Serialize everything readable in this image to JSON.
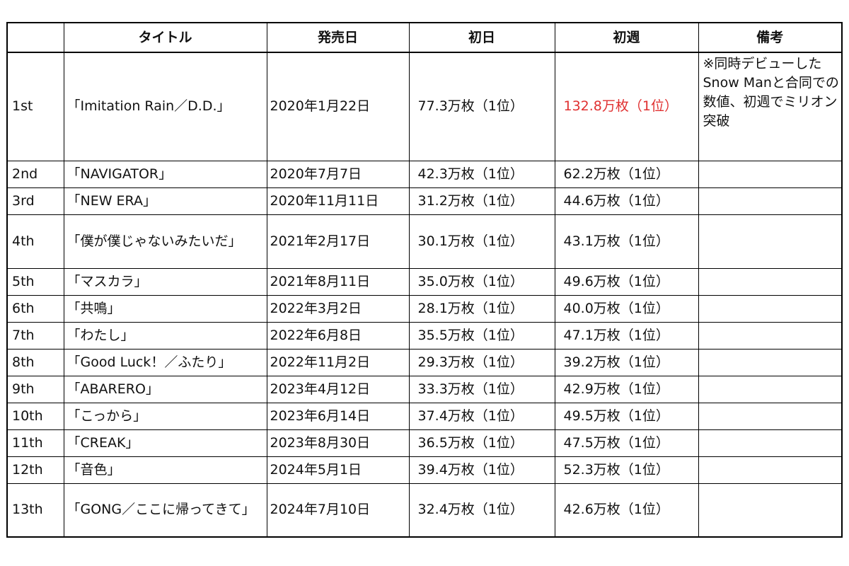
{
  "table": {
    "headers": [
      "",
      "タイトル",
      "発売日",
      "初日",
      "初週",
      "備考"
    ],
    "rows": [
      {
        "rank": "1st",
        "title": "「Imitation Rain／D.D.」",
        "date": "2020年1月22日",
        "first_day": "77.3万枚（1位）",
        "first_week": "132.8万枚（1位）",
        "note": "※同時デビューしたSnow Manと合同での数値、初週でミリオン突破",
        "highlight_week": true
      },
      {
        "rank": "2nd",
        "title": "「NAVIGATOR」",
        "date": "2020年7月7日",
        "first_day": "42.3万枚（1位）",
        "first_week": "62.2万枚（1位）",
        "note": ""
      },
      {
        "rank": "3rd",
        "title": "「NEW ERA」",
        "date": "2020年11月11日",
        "first_day": "31.2万枚（1位）",
        "first_week": "44.6万枚（1位）",
        "note": ""
      },
      {
        "rank": "4th",
        "title": "「僕が僕じゃないみたいだ」",
        "date": "2021年2月17日",
        "first_day": "30.1万枚（1位）",
        "first_week": "43.1万枚（1位）",
        "note": ""
      },
      {
        "rank": "5th",
        "title": "「マスカラ」",
        "date": "2021年8月11日",
        "first_day": "35.0万枚（1位）",
        "first_week": "49.6万枚（1位）",
        "note": ""
      },
      {
        "rank": "6th",
        "title": "「共鳴」",
        "date": "2022年3月2日",
        "first_day": "28.1万枚（1位）",
        "first_week": "40.0万枚（1位）",
        "note": ""
      },
      {
        "rank": "7th",
        "title": "「わたし」",
        "date": "2022年6月8日",
        "first_day": "35.5万枚（1位）",
        "first_week": "47.1万枚（1位）",
        "note": ""
      },
      {
        "rank": "8th",
        "title": "「Good Luck！／ふたり」",
        "date": "2022年11月2日",
        "first_day": "29.3万枚（1位）",
        "first_week": "39.2万枚（1位）",
        "note": ""
      },
      {
        "rank": "9th",
        "title": "「ABARERO」",
        "date": "2023年4月12日",
        "first_day": "33.3万枚（1位）",
        "first_week": "42.9万枚（1位）",
        "note": ""
      },
      {
        "rank": "10th",
        "title": "「こっから」",
        "date": "2023年6月14日",
        "first_day": "37.4万枚（1位）",
        "first_week": "49.5万枚（1位）",
        "note": ""
      },
      {
        "rank": "11th",
        "title": "「CREAK」",
        "date": "2023年8月30日",
        "first_day": "36.5万枚（1位）",
        "first_week": "47.5万枚（1位）",
        "note": ""
      },
      {
        "rank": "12th",
        "title": "「音色」",
        "date": "2024年5月1日",
        "first_day": "39.4万枚（1位）",
        "first_week": "52.3万枚（1位）",
        "note": ""
      },
      {
        "rank": "13th",
        "title": "「GONG／ここに帰ってきて」",
        "date": "2024年7月10日",
        "first_day": "32.4万枚（1位）",
        "first_week": "42.6万枚（1位）",
        "note": ""
      }
    ]
  },
  "colors": {
    "highlight_text": "#e03030",
    "border": "#000000",
    "background": "#ffffff"
  }
}
